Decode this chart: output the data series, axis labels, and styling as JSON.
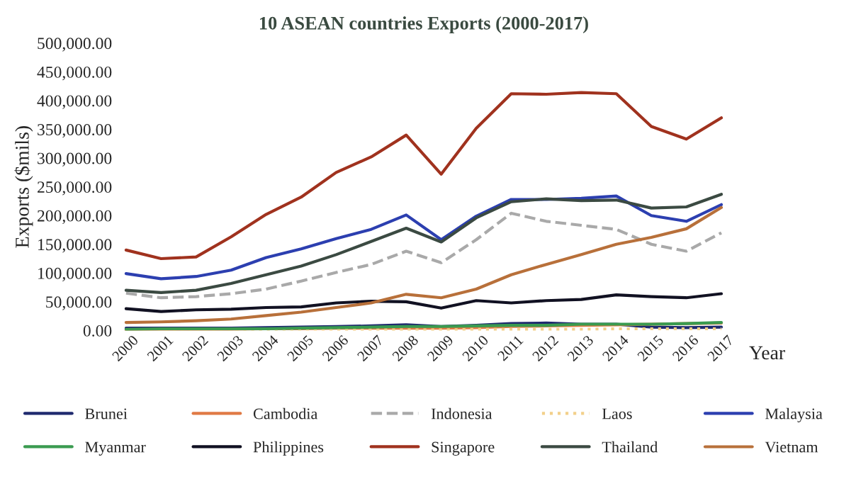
{
  "chart_data": {
    "type": "line",
    "title": "10 ASEAN countries Exports (2000-2017)",
    "xlabel": "Year",
    "ylabel": "Exports ($mils)",
    "categories": [
      "2000",
      "2001",
      "2002",
      "2003",
      "2004",
      "2005",
      "2006",
      "2007",
      "2008",
      "2009",
      "2010",
      "2011",
      "2012",
      "2013",
      "2014",
      "2015",
      "2016",
      "2017"
    ],
    "series": [
      {
        "name": "Brunei",
        "color": "#1f2a6e",
        "values": [
          4000,
          4000,
          4000,
          4000,
          5000,
          6000,
          7000,
          8000,
          10000,
          7000,
          9000,
          12000,
          13000,
          11000,
          11000,
          6000,
          5000,
          6000
        ]
      },
      {
        "name": "Cambodia",
        "color": "#e07a45",
        "values": [
          1000,
          2000,
          2000,
          2000,
          3000,
          3000,
          4000,
          4000,
          4000,
          4000,
          5000,
          7000,
          8000,
          9000,
          10000,
          11000,
          12000,
          13000
        ]
      },
      {
        "name": "Indonesia",
        "color": "#a9a9a9",
        "line_style": "dashed",
        "values": [
          65000,
          57000,
          59000,
          64000,
          72000,
          86000,
          101000,
          115000,
          138000,
          118000,
          158000,
          204000,
          190000,
          183000,
          176000,
          150000,
          138000,
          170000
        ]
      },
      {
        "name": "Laos",
        "color": "#f2d08a",
        "line_style": "dotted",
        "values": [
          0,
          0,
          0,
          0,
          0,
          1000,
          1000,
          1000,
          1000,
          1000,
          2000,
          2000,
          2000,
          2000,
          3000,
          3000,
          3000,
          3000
        ]
      },
      {
        "name": "Malaysia",
        "color": "#2c3fb0",
        "values": [
          99000,
          90000,
          94000,
          105000,
          127000,
          142000,
          160000,
          176000,
          201000,
          158000,
          199000,
          228000,
          228000,
          230000,
          234000,
          200000,
          190000,
          219000
        ]
      },
      {
        "name": "Myanmar",
        "color": "#3a9b50",
        "values": [
          2000,
          3000,
          3000,
          3000,
          3000,
          4000,
          5000,
          6000,
          7000,
          7000,
          8000,
          9000,
          9000,
          11000,
          11000,
          11000,
          12000,
          14000
        ]
      },
      {
        "name": "Philippines",
        "color": "#111122",
        "values": [
          38000,
          33000,
          36000,
          37000,
          40000,
          41000,
          48000,
          51000,
          50000,
          39000,
          52000,
          48000,
          52000,
          54000,
          62000,
          59000,
          57000,
          64000
        ]
      },
      {
        "name": "Singapore",
        "color": "#a0321e",
        "values": [
          140000,
          125000,
          128000,
          163000,
          202000,
          232000,
          275000,
          302000,
          340000,
          272000,
          352000,
          412000,
          411000,
          414000,
          412000,
          355000,
          333000,
          370000
        ]
      },
      {
        "name": "Thailand",
        "color": "#3b4a42",
        "values": [
          70000,
          66000,
          70000,
          82000,
          97000,
          112000,
          132000,
          155000,
          178000,
          154000,
          196000,
          224000,
          229000,
          226000,
          227000,
          213000,
          215000,
          237000
        ]
      },
      {
        "name": "Vietnam",
        "color": "#b8703a",
        "values": [
          14000,
          15000,
          17000,
          20000,
          26000,
          32000,
          40000,
          48000,
          63000,
          57000,
          72000,
          97000,
          115000,
          132000,
          150000,
          162000,
          177000,
          214000
        ]
      }
    ],
    "ylim": [
      0,
      500000
    ],
    "yticks": [
      {
        "value": 0,
        "label": "0.00"
      },
      {
        "value": 50000,
        "label": "50,000.00"
      },
      {
        "value": 100000,
        "label": "100,000.00"
      },
      {
        "value": 150000,
        "label": "150,000.00"
      },
      {
        "value": 200000,
        "label": "200,000.00"
      },
      {
        "value": 250000,
        "label": "250,000.00"
      },
      {
        "value": 300000,
        "label": "300,000.00"
      },
      {
        "value": 350000,
        "label": "350,000.00"
      },
      {
        "value": 400000,
        "label": "400,000.00"
      },
      {
        "value": 450000,
        "label": "450,000.00"
      },
      {
        "value": 500000,
        "label": "500,000.00"
      }
    ],
    "grid": false,
    "legend": "bottom"
  }
}
